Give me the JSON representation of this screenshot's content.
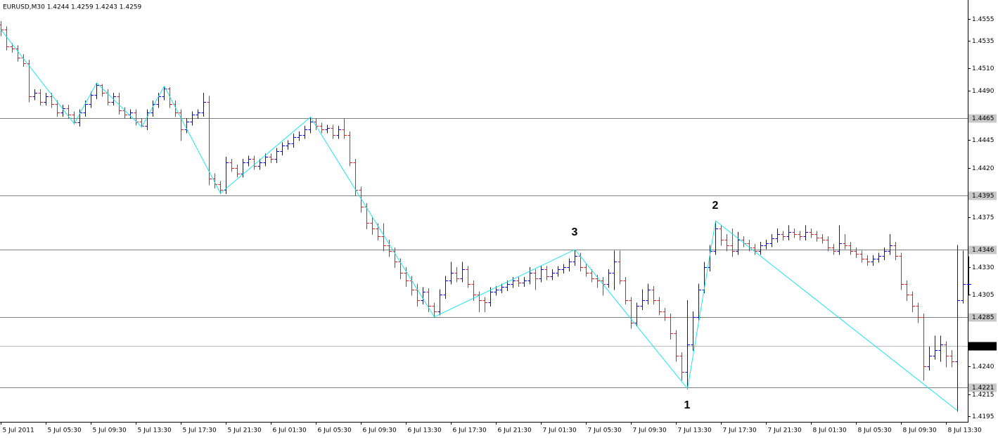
{
  "chart_data": {
    "type": "ohlc",
    "title": "EURUSD,M30  1.4244 1.4259 1.4243 1.4259",
    "up_color": "#0000ff",
    "down_color": "#e0201c",
    "zigzag_color": "#1ee6f0",
    "level_color": "#808080",
    "current_color": "#c0c0c0",
    "ylim": [
      1.419,
      1.4572
    ],
    "yticks": [
      1.4555,
      1.4535,
      {
        "value": 1.451,
        "label": "1.4510"
      },
      {
        "value": 1.449,
        "label": "1.4490"
      },
      1.4445,
      {
        "value": 1.442,
        "label": "1.4420"
      },
      1.4375,
      {
        "value": 1.433,
        "label": "1.4330"
      },
      1.4305,
      {
        "value": 1.424,
        "label": "1.4240"
      },
      1.4215,
      1.4195
    ],
    "levels": [
      1.4465,
      1.4395,
      1.4346,
      1.4285,
      1.4221
    ],
    "current_price": 1.4259,
    "annotations": [
      "3",
      "2",
      "1"
    ],
    "categories": [
      "5 Jul 2011",
      null,
      null,
      null,
      null,
      null,
      null,
      null,
      "5 Jul 05:30",
      null,
      null,
      null,
      null,
      null,
      null,
      null,
      "5 Jul 09:30",
      null,
      null,
      null,
      null,
      null,
      null,
      null,
      "5 Jul 13:30",
      null,
      null,
      null,
      null,
      null,
      null,
      null,
      "5 Jul 17:30",
      null,
      null,
      null,
      null,
      null,
      null,
      null,
      "5 Jul 21:30",
      null,
      null,
      null,
      null,
      null,
      null,
      null,
      "6 Jul 01:30",
      null,
      null,
      null,
      null,
      null,
      null,
      null,
      "6 Jul 05:30",
      null,
      null,
      null,
      null,
      null,
      null,
      null,
      "6 Jul 09:30",
      null,
      null,
      null,
      null,
      null,
      null,
      null,
      "6 Jul 13:30",
      null,
      null,
      null,
      null,
      null,
      null,
      null,
      "6 Jul 17:30",
      null,
      null,
      null,
      null,
      null,
      null,
      null,
      "6 Jul 21:30",
      null,
      null,
      null,
      null,
      null,
      null,
      null,
      "7 Jul 01:30",
      null,
      null,
      null,
      null,
      null,
      null,
      null,
      "7 Jul 05:30",
      null,
      null,
      null,
      null,
      null,
      null,
      null,
      "7 Jul 09:30",
      null,
      null,
      null,
      null,
      null,
      null,
      null,
      "7 Jul 13:30",
      null,
      null,
      null,
      null,
      null,
      null,
      null,
      "7 Jul 17:30",
      null,
      null,
      null,
      null,
      null,
      null,
      null,
      "7 Jul 21:30",
      null,
      null,
      null,
      null,
      null,
      null,
      null,
      "8 Jul 01:30",
      null,
      null,
      null,
      null,
      null,
      null,
      null,
      "8 Jul 05:30",
      null,
      null,
      null,
      null,
      null,
      null,
      null,
      "8 Jul 09:30",
      null,
      null,
      null,
      null,
      null,
      null,
      null,
      "8 Jul 13:30",
      null,
      null,
      null,
      null
    ],
    "ohlc": [
      [
        1.455,
        1.4553,
        1.454,
        1.4545
      ],
      [
        1.4545,
        1.4548,
        1.4527,
        1.453
      ],
      [
        1.453,
        1.4533,
        1.4525,
        1.4528
      ],
      [
        1.4528,
        1.4531,
        1.4517,
        1.452
      ],
      [
        1.452,
        1.4523,
        1.4512,
        1.4515
      ],
      [
        1.4515,
        1.4518,
        1.448,
        1.4485
      ],
      [
        1.4485,
        1.4491,
        1.4482,
        1.4488
      ],
      [
        1.4488,
        1.4491,
        1.4477,
        1.448
      ],
      [
        1.448,
        1.4488,
        1.4477,
        1.4485
      ],
      [
        1.4485,
        1.4488,
        1.4475,
        1.4478
      ],
      [
        1.4478,
        1.4481,
        1.4467,
        1.447
      ],
      [
        1.447,
        1.4477,
        1.4467,
        1.4474
      ],
      [
        1.4474,
        1.4477,
        1.4465,
        1.4468
      ],
      [
        1.4468,
        1.4471,
        1.446,
        1.4461
      ],
      [
        1.4461,
        1.4473,
        1.4458,
        1.447
      ],
      [
        1.447,
        1.4481,
        1.4467,
        1.4478
      ],
      [
        1.4478,
        1.4489,
        1.4475,
        1.4486
      ],
      [
        1.4486,
        1.4497,
        1.4483,
        1.4495
      ],
      [
        1.4495,
        1.4496,
        1.4485,
        1.4488
      ],
      [
        1.4488,
        1.4491,
        1.4477,
        1.448
      ],
      [
        1.448,
        1.4488,
        1.4477,
        1.4485
      ],
      [
        1.4485,
        1.4488,
        1.4469,
        1.4472
      ],
      [
        1.4472,
        1.4475,
        1.4465,
        1.4468
      ],
      [
        1.4468,
        1.4473,
        1.4465,
        1.447
      ],
      [
        1.447,
        1.4473,
        1.4459,
        1.4462
      ],
      [
        1.4462,
        1.4465,
        1.4457,
        1.4458
      ],
      [
        1.4458,
        1.4473,
        1.4455,
        1.447
      ],
      [
        1.447,
        1.4481,
        1.4467,
        1.4478
      ],
      [
        1.4478,
        1.4488,
        1.4475,
        1.4485
      ],
      [
        1.4485,
        1.4494,
        1.4482,
        1.4492
      ],
      [
        1.4492,
        1.4493,
        1.4475,
        1.4478
      ],
      [
        1.4478,
        1.4481,
        1.4467,
        1.447
      ],
      [
        1.447,
        1.4473,
        1.4445,
        1.4455
      ],
      [
        1.4455,
        1.4465,
        1.4452,
        1.4462
      ],
      [
        1.4462,
        1.4471,
        1.4459,
        1.4468
      ],
      [
        1.4468,
        1.4473,
        1.4465,
        1.447
      ],
      [
        1.447,
        1.4488,
        1.4467,
        1.448
      ],
      [
        1.448,
        1.4485,
        1.4405,
        1.441
      ],
      [
        1.441,
        1.4415,
        1.4402,
        1.4405
      ],
      [
        1.4405,
        1.4408,
        1.4397,
        1.44
      ],
      [
        1.44,
        1.443,
        1.4397,
        1.4425
      ],
      [
        1.4425,
        1.4428,
        1.4417,
        1.442
      ],
      [
        1.442,
        1.4423,
        1.4412,
        1.4415
      ],
      [
        1.4415,
        1.4428,
        1.4412,
        1.4425
      ],
      [
        1.4425,
        1.4431,
        1.4422,
        1.4428
      ],
      [
        1.4428,
        1.4431,
        1.4419,
        1.4422
      ],
      [
        1.4422,
        1.4428,
        1.4419,
        1.4425
      ],
      [
        1.4425,
        1.4433,
        1.4422,
        1.443
      ],
      [
        1.443,
        1.4433,
        1.4425,
        1.4428
      ],
      [
        1.4428,
        1.4438,
        1.4425,
        1.4435
      ],
      [
        1.4435,
        1.4443,
        1.4432,
        1.444
      ],
      [
        1.444,
        1.4445,
        1.4437,
        1.4442
      ],
      [
        1.4442,
        1.4451,
        1.4439,
        1.4448
      ],
      [
        1.4448,
        1.4453,
        1.4445,
        1.445
      ],
      [
        1.445,
        1.4458,
        1.4447,
        1.4455
      ],
      [
        1.4455,
        1.4466,
        1.4452,
        1.4462
      ],
      [
        1.4462,
        1.4465,
        1.4455,
        1.4458
      ],
      [
        1.4458,
        1.4461,
        1.4452,
        1.4455
      ],
      [
        1.4455,
        1.4459,
        1.4452,
        1.4456
      ],
      [
        1.4456,
        1.4459,
        1.4447,
        1.445
      ],
      [
        1.445,
        1.4458,
        1.4447,
        1.4455
      ],
      [
        1.4455,
        1.4465,
        1.4447,
        1.445
      ],
      [
        1.445,
        1.4453,
        1.4422,
        1.4425
      ],
      [
        1.4425,
        1.4428,
        1.4395,
        1.44
      ],
      [
        1.44,
        1.4403,
        1.438,
        1.4385
      ],
      [
        1.4385,
        1.4388,
        1.4365,
        1.437
      ],
      [
        1.437,
        1.4375,
        1.436,
        1.4365
      ],
      [
        1.4365,
        1.437,
        1.4355,
        1.4358
      ],
      [
        1.4358,
        1.437,
        1.4345,
        1.435
      ],
      [
        1.435,
        1.4355,
        1.434,
        1.4345
      ],
      [
        1.4345,
        1.4348,
        1.433,
        1.4335
      ],
      [
        1.4335,
        1.4338,
        1.432,
        1.4325
      ],
      [
        1.4325,
        1.433,
        1.4313,
        1.4318
      ],
      [
        1.4318,
        1.4322,
        1.4305,
        1.431
      ],
      [
        1.431,
        1.4315,
        1.4295,
        1.43
      ],
      [
        1.43,
        1.4312,
        1.4297,
        1.4308
      ],
      [
        1.4308,
        1.4311,
        1.429,
        1.4295
      ],
      [
        1.4295,
        1.4298,
        1.4285,
        1.429
      ],
      [
        1.429,
        1.431,
        1.4287,
        1.4305
      ],
      [
        1.4305,
        1.4322,
        1.4302,
        1.4318
      ],
      [
        1.4318,
        1.4335,
        1.4315,
        1.4325
      ],
      [
        1.4325,
        1.433,
        1.4317,
        1.432
      ],
      [
        1.432,
        1.4335,
        1.4317,
        1.4328
      ],
      [
        1.4328,
        1.4331,
        1.4312,
        1.4315
      ],
      [
        1.4315,
        1.4318,
        1.43,
        1.4305
      ],
      [
        1.4305,
        1.4308,
        1.429,
        1.43
      ],
      [
        1.43,
        1.4303,
        1.429,
        1.4298
      ],
      [
        1.4298,
        1.4312,
        1.4295,
        1.4308
      ],
      [
        1.4308,
        1.4313,
        1.4305,
        1.431
      ],
      [
        1.431,
        1.4315,
        1.4307,
        1.4312
      ],
      [
        1.4312,
        1.4318,
        1.4309,
        1.4315
      ],
      [
        1.4315,
        1.4321,
        1.4312,
        1.4318
      ],
      [
        1.4318,
        1.4321,
        1.4313,
        1.4316
      ],
      [
        1.4316,
        1.4321,
        1.4313,
        1.4318
      ],
      [
        1.4318,
        1.433,
        1.4315,
        1.4325
      ],
      [
        1.4325,
        1.4328,
        1.431,
        1.432
      ],
      [
        1.432,
        1.4331,
        1.4317,
        1.4328
      ],
      [
        1.4328,
        1.4331,
        1.4319,
        1.4322
      ],
      [
        1.4322,
        1.4328,
        1.4319,
        1.4325
      ],
      [
        1.4325,
        1.4331,
        1.4322,
        1.4328
      ],
      [
        1.4328,
        1.4333,
        1.4325,
        1.433
      ],
      [
        1.433,
        1.4338,
        1.4327,
        1.4335
      ],
      [
        1.4335,
        1.4346,
        1.4332,
        1.434
      ],
      [
        1.434,
        1.4343,
        1.4327,
        1.433
      ],
      [
        1.433,
        1.4333,
        1.4322,
        1.4325
      ],
      [
        1.4325,
        1.4328,
        1.4317,
        1.432
      ],
      [
        1.432,
        1.4323,
        1.4312,
        1.4318
      ],
      [
        1.4318,
        1.4321,
        1.4305,
        1.4315
      ],
      [
        1.4315,
        1.4328,
        1.4312,
        1.4325
      ],
      [
        1.4325,
        1.4345,
        1.431,
        1.4335
      ],
      [
        1.4335,
        1.4345,
        1.4315,
        1.4318
      ],
      [
        1.4318,
        1.4321,
        1.4297,
        1.43
      ],
      [
        1.43,
        1.4303,
        1.4275,
        1.428
      ],
      [
        1.428,
        1.4298,
        1.4277,
        1.4295
      ],
      [
        1.4295,
        1.431,
        1.4292,
        1.43
      ],
      [
        1.43,
        1.4315,
        1.4297,
        1.431
      ],
      [
        1.431,
        1.4313,
        1.4297,
        1.43
      ],
      [
        1.43,
        1.4303,
        1.4287,
        1.429
      ],
      [
        1.429,
        1.4293,
        1.4282,
        1.4285
      ],
      [
        1.4285,
        1.4288,
        1.4265,
        1.427
      ],
      [
        1.427,
        1.4273,
        1.4245,
        1.425
      ],
      [
        1.425,
        1.4253,
        1.4228,
        1.4235
      ],
      [
        1.4235,
        1.43,
        1.422,
        1.426
      ],
      [
        1.426,
        1.429,
        1.4255,
        1.4285
      ],
      [
        1.4285,
        1.4315,
        1.4282,
        1.431
      ],
      [
        1.431,
        1.4335,
        1.4307,
        1.433
      ],
      [
        1.433,
        1.435,
        1.4327,
        1.4345
      ],
      [
        1.4345,
        1.4372,
        1.4342,
        1.4365
      ],
      [
        1.4365,
        1.4368,
        1.435,
        1.4355
      ],
      [
        1.4355,
        1.436,
        1.4345,
        1.435
      ],
      [
        1.435,
        1.4365,
        1.434,
        1.4345
      ],
      [
        1.4345,
        1.4362,
        1.4342,
        1.4355
      ],
      [
        1.4355,
        1.4358,
        1.4349,
        1.4352
      ],
      [
        1.4352,
        1.4355,
        1.4345,
        1.4348
      ],
      [
        1.4348,
        1.4351,
        1.4342,
        1.4345
      ],
      [
        1.4345,
        1.4353,
        1.4342,
        1.435
      ],
      [
        1.435,
        1.4355,
        1.4347,
        1.4352
      ],
      [
        1.4352,
        1.436,
        1.4349,
        1.4356
      ],
      [
        1.4356,
        1.4365,
        1.4353,
        1.436
      ],
      [
        1.436,
        1.4363,
        1.4355,
        1.4358
      ],
      [
        1.4358,
        1.4368,
        1.4355,
        1.4362
      ],
      [
        1.4362,
        1.4365,
        1.4357,
        1.436
      ],
      [
        1.436,
        1.4363,
        1.4355,
        1.4358
      ],
      [
        1.4358,
        1.4368,
        1.4355,
        1.4362
      ],
      [
        1.4362,
        1.4365,
        1.4357,
        1.436
      ],
      [
        1.436,
        1.4363,
        1.4354,
        1.4357
      ],
      [
        1.4357,
        1.436,
        1.4352,
        1.4355
      ],
      [
        1.4355,
        1.4358,
        1.4345,
        1.4348
      ],
      [
        1.4348,
        1.4351,
        1.4342,
        1.4345
      ],
      [
        1.4345,
        1.4368,
        1.4342,
        1.4352
      ],
      [
        1.4352,
        1.436,
        1.4347,
        1.435
      ],
      [
        1.435,
        1.4353,
        1.4342,
        1.4345
      ],
      [
        1.4345,
        1.4348,
        1.4339,
        1.4342
      ],
      [
        1.4342,
        1.4345,
        1.4335,
        1.4338
      ],
      [
        1.4338,
        1.4341,
        1.4332,
        1.4335
      ],
      [
        1.4335,
        1.4341,
        1.4332,
        1.4338
      ],
      [
        1.4338,
        1.4343,
        1.4335,
        1.434
      ],
      [
        1.434,
        1.4348,
        1.4337,
        1.4345
      ],
      [
        1.4345,
        1.436,
        1.4342,
        1.435
      ],
      [
        1.435,
        1.4353,
        1.4337,
        1.434
      ],
      [
        1.434,
        1.4343,
        1.431,
        1.4315
      ],
      [
        1.4315,
        1.4318,
        1.43,
        1.4305
      ],
      [
        1.4305,
        1.4308,
        1.429,
        1.4295
      ],
      [
        1.4295,
        1.4298,
        1.428,
        1.4285
      ],
      [
        1.4285,
        1.4288,
        1.4228,
        1.424
      ],
      [
        1.424,
        1.4258,
        1.4237,
        1.425
      ],
      [
        1.425,
        1.4268,
        1.4247,
        1.4255
      ],
      [
        1.4255,
        1.4268,
        1.4245,
        1.426
      ],
      [
        1.426,
        1.4263,
        1.424,
        1.425
      ],
      [
        1.425,
        1.4255,
        1.424,
        1.4245
      ],
      [
        1.4245,
        1.435,
        1.42,
        1.43
      ],
      [
        1.43,
        1.4345,
        1.4298,
        1.4315
      ],
      [
        1.4315,
        1.434,
        1.4305,
        1.4315
      ]
    ],
    "zigzag": {
      "bar": [
        0,
        13,
        17,
        25,
        29,
        39,
        55,
        77,
        102,
        122,
        127,
        170
      ],
      "values": [
        1.4545,
        1.446,
        1.4497,
        1.4457,
        1.4494,
        1.4397,
        1.4466,
        1.4285,
        1.4346,
        1.422,
        1.4372,
        1.42
      ]
    }
  }
}
